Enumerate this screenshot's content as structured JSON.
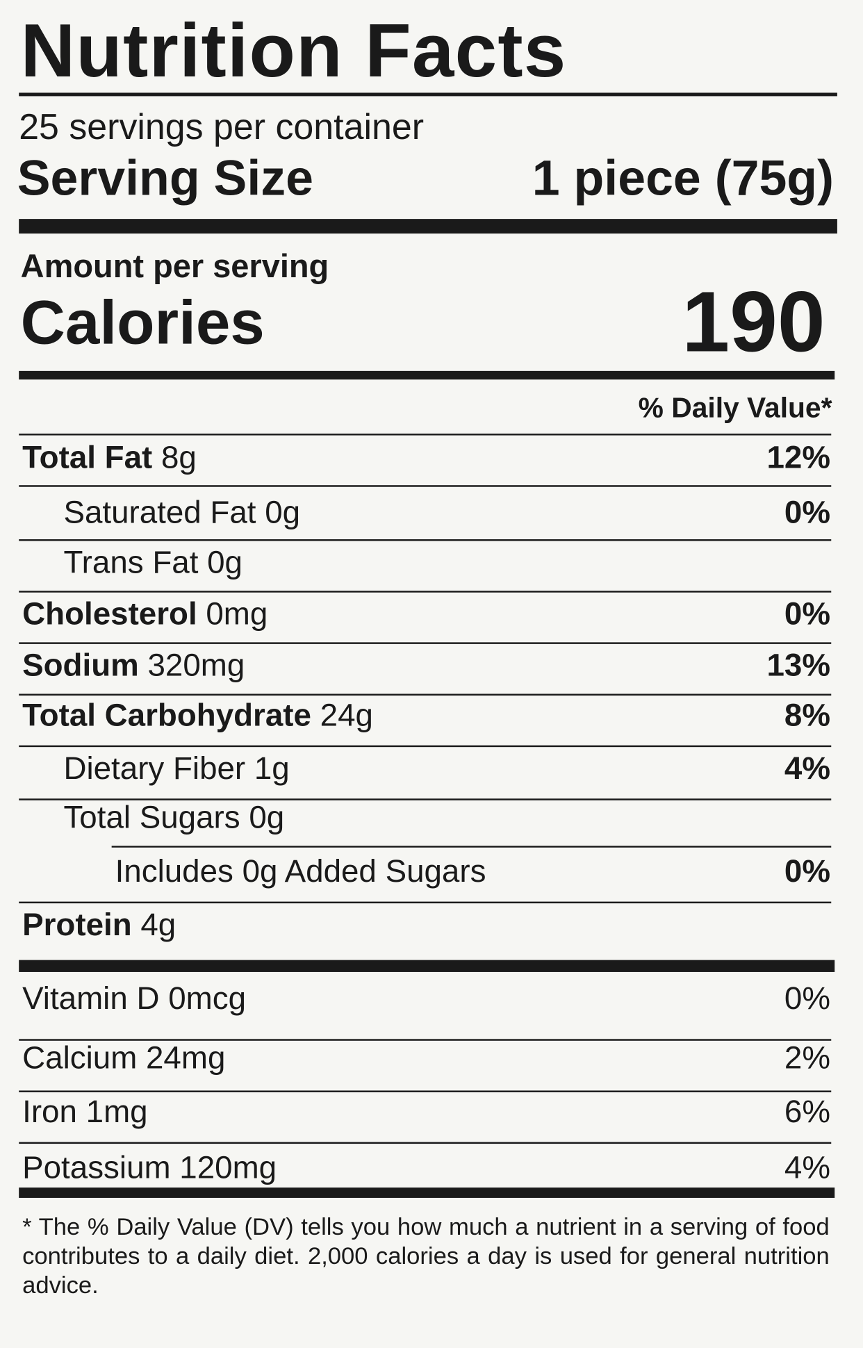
{
  "header": {
    "title": "Nutrition Facts",
    "servings": "25 servings per container",
    "serving_size_label": "Serving Size",
    "serving_size_value": "1 piece (75g)"
  },
  "calories": {
    "amount_label": "Amount per serving",
    "label": "Calories",
    "value": "190"
  },
  "daily_value_header": "% Daily Value*",
  "nutrients": [
    {
      "name": "Total Fat",
      "amount": "8g",
      "dv": "12%"
    },
    {
      "name": "Saturated Fat",
      "amount": "0g",
      "dv": "0%"
    },
    {
      "name": "Trans Fat",
      "amount": "0g"
    },
    {
      "name": "Cholesterol",
      "amount": "0mg",
      "dv": "0%"
    },
    {
      "name": "Sodium",
      "amount": "320mg",
      "dv": "13%"
    },
    {
      "name": "Total Carbohydrate",
      "amount": "24g",
      "dv": "8%"
    },
    {
      "name": "Dietary Fiber",
      "amount": "1g",
      "dv": "4%"
    },
    {
      "name": "Total Sugars",
      "amount": "0g"
    },
    {
      "name": "Includes 0g Added Sugars",
      "dv": "0%"
    },
    {
      "name": "Protein",
      "amount": "4g"
    }
  ],
  "vitamins": [
    {
      "name": "Vitamin D",
      "amount": "0mcg",
      "dv": "0%"
    },
    {
      "name": "Calcium",
      "amount": "24mg",
      "dv": "2%"
    },
    {
      "name": "Iron",
      "amount": "1mg",
      "dv": "6%"
    },
    {
      "name": "Potassium",
      "amount": "120mg",
      "dv": "4%"
    }
  ],
  "footnote": "* The % Daily Value (DV) tells you how much a nutrient in a serving of food contributes to a daily diet. 2,000 calories a day is used for general nutrition advice."
}
